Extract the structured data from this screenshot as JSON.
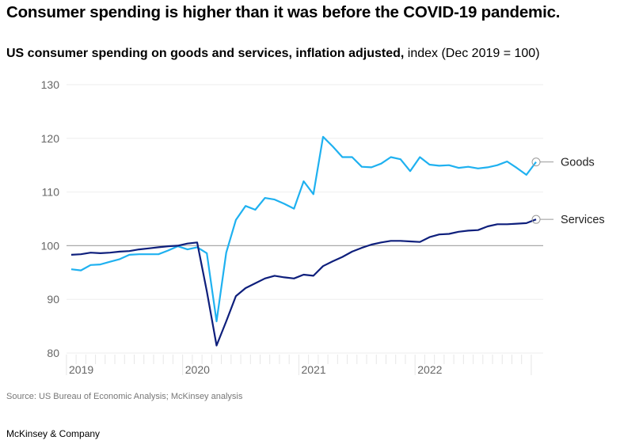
{
  "title": "Consumer spending is higher than it was before the COVID-19 pandemic.",
  "subtitle_bold": "US consumer spending on goods and services, inflation adjusted,",
  "subtitle_regular": " index (Dec 2019 = 100)",
  "source": "Source: US Bureau of Economic Analysis; McKinsey analysis",
  "logo": "McKinsey & Company",
  "chart_data": {
    "type": "line",
    "xlabel": "",
    "ylabel": "",
    "x_start": "2019-01",
    "x_end": "2023-01",
    "x_frequency": "monthly",
    "x_tick_labels": [
      "2019",
      "2020",
      "2021",
      "2022"
    ],
    "ylim": [
      80,
      130
    ],
    "y_ticks": [
      80,
      90,
      100,
      110,
      120,
      130
    ],
    "y_tick_labels": [
      "80",
      "90",
      "100",
      "110",
      "120",
      "130"
    ],
    "reference_line": 100,
    "grid": true,
    "legend": "end-of-line labels",
    "series": [
      {
        "name": "Goods",
        "color": "#1fb1f0",
        "values": [
          95.6,
          95.4,
          96.4,
          96.5,
          97.0,
          97.5,
          98.3,
          98.4,
          98.4,
          98.4,
          99.1,
          99.9,
          99.3,
          99.7,
          98.6,
          85.9,
          98.7,
          104.8,
          107.4,
          106.7,
          108.9,
          108.6,
          107.8,
          106.9,
          112.0,
          109.6,
          120.3,
          118.5,
          116.5,
          116.5,
          114.7,
          114.6,
          115.3,
          116.5,
          116.1,
          113.9,
          116.5,
          115.1,
          114.9,
          115.0,
          114.5,
          114.7,
          114.4,
          114.6,
          115.0,
          115.7,
          114.5,
          113.2,
          115.6
        ]
      },
      {
        "name": "Services",
        "color": "#0e1f7c",
        "values": [
          98.3,
          98.4,
          98.7,
          98.6,
          98.7,
          98.9,
          99.0,
          99.3,
          99.5,
          99.7,
          99.9,
          100.0,
          100.4,
          100.6,
          91.5,
          81.4,
          85.9,
          90.6,
          92.1,
          93.0,
          93.9,
          94.4,
          94.1,
          93.9,
          94.6,
          94.4,
          96.2,
          97.1,
          97.9,
          98.9,
          99.6,
          100.2,
          100.6,
          100.9,
          100.9,
          100.8,
          100.7,
          101.6,
          102.1,
          102.2,
          102.6,
          102.8,
          102.9,
          103.6,
          104.0,
          104.0,
          104.1,
          104.2,
          104.9
        ]
      }
    ]
  }
}
